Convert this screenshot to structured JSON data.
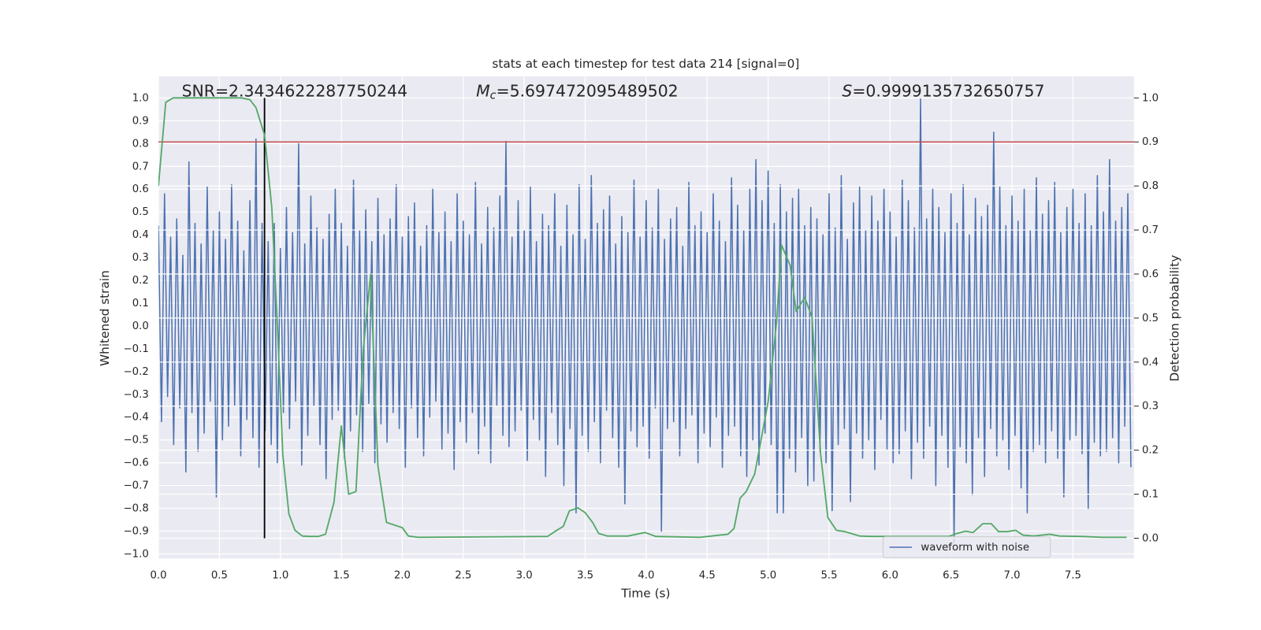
{
  "chart_data": {
    "type": "line",
    "title": "stats at each timestep for test data 214 [signal=0]",
    "x_label": "Time (s)",
    "y_label": "Whitened strain",
    "y2_label": "Detection probability",
    "grid": true,
    "legend": "lower right",
    "xlim": [
      0,
      8
    ],
    "ylim": [
      -1.02,
      1.095
    ],
    "y2lim": [
      -0.046,
      1.049
    ],
    "xticks": [
      {
        "value": 0,
        "label": "0.0"
      },
      {
        "value": 0.5,
        "label": "0.5"
      },
      {
        "value": 1,
        "label": "1.0"
      },
      {
        "value": 1.5,
        "label": "1.5"
      },
      {
        "value": 2,
        "label": "2.0"
      },
      {
        "value": 2.5,
        "label": "2.5"
      },
      {
        "value": 3,
        "label": "3.0"
      },
      {
        "value": 3.5,
        "label": "3.5"
      },
      {
        "value": 4,
        "label": "4.0"
      },
      {
        "value": 4.5,
        "label": "4.5"
      },
      {
        "value": 5,
        "label": "5.0"
      },
      {
        "value": 5.5,
        "label": "5.5"
      },
      {
        "value": 6,
        "label": "6.0"
      },
      {
        "value": 6.5,
        "label": "6.5"
      },
      {
        "value": 7,
        "label": "7.0"
      },
      {
        "value": 7.5,
        "label": "7.5"
      }
    ],
    "yticks": [
      {
        "value": -1,
        "label": "−1.0"
      },
      {
        "value": -0.9,
        "label": "−0.9"
      },
      {
        "value": -0.8,
        "label": "−0.8"
      },
      {
        "value": -0.7,
        "label": "−0.7"
      },
      {
        "value": -0.6,
        "label": "−0.6"
      },
      {
        "value": -0.5,
        "label": "−0.5"
      },
      {
        "value": -0.4,
        "label": "−0.4"
      },
      {
        "value": -0.3,
        "label": "−0.3"
      },
      {
        "value": -0.2,
        "label": "−0.2"
      },
      {
        "value": -0.1,
        "label": "−0.1"
      },
      {
        "value": 0,
        "label": "0.0"
      },
      {
        "value": 0.1,
        "label": "0.1"
      },
      {
        "value": 0.2,
        "label": "0.2"
      },
      {
        "value": 0.3,
        "label": "0.3"
      },
      {
        "value": 0.4,
        "label": "0.4"
      },
      {
        "value": 0.5,
        "label": "0.5"
      },
      {
        "value": 0.6,
        "label": "0.6"
      },
      {
        "value": 0.7,
        "label": "0.7"
      },
      {
        "value": 0.8,
        "label": "0.8"
      },
      {
        "value": 0.9,
        "label": "0.9"
      },
      {
        "value": 1,
        "label": "1.0"
      }
    ],
    "y2ticks": [
      {
        "value": 0,
        "label": "0.0"
      },
      {
        "value": 0.1,
        "label": "0.1"
      },
      {
        "value": 0.2,
        "label": "0.2"
      },
      {
        "value": 0.3,
        "label": "0.3"
      },
      {
        "value": 0.4,
        "label": "0.4"
      },
      {
        "value": 0.5,
        "label": "0.5"
      },
      {
        "value": 0.6,
        "label": "0.6"
      },
      {
        "value": 0.7,
        "label": "0.7"
      },
      {
        "value": 0.8,
        "label": "0.8"
      },
      {
        "value": 0.9,
        "label": "0.9"
      },
      {
        "value": 1,
        "label": "1.0"
      }
    ],
    "annotations": [
      {
        "text": "SNR=2.3434622287750244"
      },
      {
        "symbol": "M",
        "subscript": "c",
        "text": "=5.697472095489502"
      },
      {
        "symbol": "S",
        "text": "=0.9999135732650757"
      }
    ],
    "hlines": [
      {
        "y": 0.9,
        "axis": "y2",
        "color": "#c44e52"
      }
    ],
    "vlines": [
      {
        "x": 0.87,
        "ymin": 0,
        "ymax": 1,
        "axis": "y2",
        "color": "#000000"
      }
    ],
    "series": [
      {
        "name": "waveform with noise",
        "color": "#4c72b0",
        "x": [
          0,
          0.025,
          0.05,
          0.075,
          0.1,
          0.125,
          0.15,
          0.175,
          0.2,
          0.225,
          0.25,
          0.275,
          0.3,
          0.325,
          0.35,
          0.375,
          0.4,
          0.425,
          0.45,
          0.475,
          0.5,
          0.525,
          0.55,
          0.575,
          0.6,
          0.625,
          0.65,
          0.675,
          0.7,
          0.725,
          0.75,
          0.775,
          0.8,
          0.825,
          0.85,
          0.875,
          0.9,
          0.925,
          0.95,
          0.975,
          1,
          1.025,
          1.05,
          1.075,
          1.1,
          1.125,
          1.15,
          1.175,
          1.2,
          1.225,
          1.25,
          1.275,
          1.3,
          1.325,
          1.35,
          1.375,
          1.4,
          1.425,
          1.45,
          1.475,
          1.5,
          1.525,
          1.55,
          1.575,
          1.6,
          1.625,
          1.65,
          1.675,
          1.7,
          1.725,
          1.75,
          1.775,
          1.8,
          1.825,
          1.85,
          1.875,
          1.9,
          1.925,
          1.95,
          1.975,
          2,
          2.025,
          2.05,
          2.075,
          2.1,
          2.125,
          2.15,
          2.175,
          2.2,
          2.225,
          2.25,
          2.275,
          2.3,
          2.325,
          2.35,
          2.375,
          2.4,
          2.425,
          2.45,
          2.475,
          2.5,
          2.525,
          2.55,
          2.575,
          2.6,
          2.625,
          2.65,
          2.675,
          2.7,
          2.725,
          2.75,
          2.775,
          2.8,
          2.825,
          2.85,
          2.875,
          2.9,
          2.925,
          2.95,
          2.975,
          3,
          3.025,
          3.05,
          3.075,
          3.1,
          3.125,
          3.15,
          3.175,
          3.2,
          3.225,
          3.25,
          3.275,
          3.3,
          3.325,
          3.35,
          3.375,
          3.4,
          3.425,
          3.45,
          3.475,
          3.5,
          3.525,
          3.55,
          3.575,
          3.6,
          3.625,
          3.65,
          3.675,
          3.7,
          3.725,
          3.75,
          3.775,
          3.8,
          3.825,
          3.85,
          3.875,
          3.9,
          3.925,
          3.95,
          3.975,
          4,
          4.025,
          4.05,
          4.075,
          4.1,
          4.125,
          4.15,
          4.175,
          4.2,
          4.225,
          4.25,
          4.275,
          4.3,
          4.325,
          4.35,
          4.375,
          4.4,
          4.425,
          4.45,
          4.475,
          4.5,
          4.525,
          4.55,
          4.575,
          4.6,
          4.625,
          4.65,
          4.675,
          4.7,
          4.725,
          4.75,
          4.775,
          4.8,
          4.825,
          4.85,
          4.875,
          4.9,
          4.925,
          4.95,
          4.975,
          5,
          5.025,
          5.05,
          5.075,
          5.1,
          5.125,
          5.15,
          5.175,
          5.2,
          5.225,
          5.25,
          5.275,
          5.3,
          5.325,
          5.35,
          5.375,
          5.4,
          5.425,
          5.45,
          5.475,
          5.5,
          5.525,
          5.55,
          5.575,
          5.6,
          5.625,
          5.65,
          5.675,
          5.7,
          5.725,
          5.75,
          5.775,
          5.8,
          5.825,
          5.85,
          5.875,
          5.9,
          5.925,
          5.95,
          5.975,
          6,
          6.025,
          6.05,
          6.075,
          6.1,
          6.125,
          6.15,
          6.175,
          6.2,
          6.225,
          6.25,
          6.275,
          6.3,
          6.325,
          6.35,
          6.375,
          6.4,
          6.425,
          6.45,
          6.475,
          6.5,
          6.525,
          6.55,
          6.575,
          6.6,
          6.625,
          6.65,
          6.675,
          6.7,
          6.725,
          6.75,
          6.775,
          6.8,
          6.825,
          6.85,
          6.875,
          6.9,
          6.925,
          6.95,
          6.975,
          7,
          7.025,
          7.05,
          7.075,
          7.1,
          7.125,
          7.15,
          7.175,
          7.2,
          7.225,
          7.25,
          7.275,
          7.3,
          7.325,
          7.35,
          7.375,
          7.4,
          7.425,
          7.45,
          7.475,
          7.5,
          7.525,
          7.55,
          7.575,
          7.6,
          7.625,
          7.65,
          7.675,
          7.7,
          7.725,
          7.75,
          7.775,
          7.8,
          7.825,
          7.85,
          7.875,
          7.9,
          7.925,
          7.95,
          7.975
        ],
        "values": [
          0.44,
          -0.42,
          0.58,
          -0.31,
          0.39,
          -0.52,
          0.47,
          -0.36,
          0.31,
          -0.64,
          0.72,
          -0.38,
          0.45,
          -0.55,
          0.36,
          -0.47,
          0.61,
          -0.33,
          0.42,
          -0.75,
          0.5,
          -0.5,
          0.38,
          -0.44,
          0.62,
          -0.35,
          0.46,
          -0.57,
          0.33,
          -0.41,
          0.55,
          -0.49,
          0.82,
          -0.62,
          0.45,
          -0.46,
          0.37,
          -0.52,
          0.45,
          -0.6,
          0.34,
          -0.38,
          0.52,
          -0.45,
          0.41,
          -0.33,
          0.8,
          -0.61,
          0.36,
          -0.48,
          0.57,
          -0.35,
          0.43,
          -0.52,
          0.38,
          -0.67,
          0.49,
          -0.41,
          0.6,
          -0.37,
          0.45,
          -0.58,
          0.35,
          -0.46,
          0.64,
          -0.39,
          0.42,
          -0.55,
          0.51,
          -0.34,
          0.37,
          -0.6,
          0.56,
          -0.43,
          0.4,
          -0.51,
          0.47,
          -0.38,
          0.62,
          -0.45,
          0.39,
          -0.62,
          0.48,
          -0.36,
          0.54,
          -0.49,
          0.35,
          -0.57,
          0.44,
          -0.4,
          0.6,
          -0.33,
          0.41,
          -0.54,
          0.5,
          -0.47,
          0.37,
          -0.63,
          0.58,
          -0.42,
          0.46,
          -0.51,
          0.4,
          -0.38,
          0.63,
          -0.56,
          0.36,
          -0.44,
          0.52,
          -0.6,
          0.43,
          -0.35,
          0.57,
          -0.48,
          0.81,
          -0.53,
          0.39,
          -0.46,
          0.55,
          -0.37,
          0.42,
          -0.59,
          0.61,
          -0.41,
          0.37,
          -0.5,
          0.49,
          -0.66,
          0.44,
          -0.38,
          0.58,
          -0.52,
          0.35,
          -0.7,
          0.53,
          -0.45,
          0.4,
          -0.82,
          0.62,
          -0.48,
          0.38,
          -0.55,
          0.66,
          -0.42,
          0.45,
          -0.6,
          0.51,
          -0.37,
          0.57,
          -0.49,
          0.36,
          -0.62,
          0.48,
          -0.78,
          0.41,
          -0.46,
          0.64,
          -0.53,
          0.39,
          -0.44,
          0.55,
          -0.58,
          0.43,
          -0.36,
          0.6,
          -0.9,
          0.38,
          -0.45,
          0.47,
          -0.42,
          0.52,
          -0.57,
          0.35,
          -0.45,
          0.63,
          -0.39,
          0.44,
          -0.6,
          0.5,
          -0.47,
          0.41,
          -0.53,
          0.58,
          -0.4,
          0.46,
          -0.62,
          0.37,
          -0.48,
          0.65,
          -0.44,
          0.53,
          -0.57,
          0.42,
          -0.66,
          0.6,
          -0.5,
          0.73,
          -0.61,
          0.55,
          -0.47,
          0.68,
          -0.52,
          0.45,
          -0.82,
          0.62,
          -0.82,
          0.5,
          -0.58,
          0.56,
          -0.64,
          0.6,
          -0.49,
          0.44,
          -0.7,
          0.52,
          -0.68,
          0.47,
          -0.55,
          0.4,
          -0.6,
          0.58,
          -0.81,
          0.43,
          -0.52,
          0.66,
          -0.45,
          0.38,
          -0.77,
          0.54,
          -0.47,
          0.61,
          -0.58,
          0.42,
          -0.5,
          0.57,
          -0.63,
          0.46,
          -0.41,
          0.6,
          -0.54,
          0.5,
          -0.6,
          0.39,
          -0.56,
          0.64,
          -0.46,
          0.55,
          -0.67,
          0.43,
          -0.51,
          1.0,
          -0.58,
          0.47,
          -0.44,
          0.6,
          -0.7,
          0.52,
          -0.48,
          0.41,
          -0.62,
          0.58,
          -0.95,
          0.45,
          -0.53,
          0.62,
          -0.6,
          0.4,
          -0.74,
          0.56,
          -0.49,
          0.48,
          -0.66,
          0.53,
          -0.45,
          0.85,
          -0.57,
          0.61,
          -0.5,
          0.44,
          -0.63,
          0.57,
          -0.48,
          0.46,
          -0.71,
          0.6,
          -0.82,
          0.42,
          -0.55,
          0.65,
          -0.52,
          0.49,
          -0.6,
          0.55,
          -0.46,
          0.63,
          -0.58,
          0.41,
          -0.75,
          0.52,
          -0.5,
          0.6,
          -0.48,
          0.45,
          -0.56,
          0.58,
          -0.8,
          0.44,
          -0.51,
          0.66,
          -0.57,
          0.5,
          -0.55,
          0.73,
          -0.49,
          0.46,
          -0.6,
          0.52,
          -0.44,
          0.58,
          -0.62
        ]
      },
      {
        "color": "#55a868",
        "axis": "y2",
        "x": [
          0,
          0.06,
          0.12,
          0.68,
          0.75,
          0.8,
          0.87,
          0.93,
          0.98,
          1.02,
          1.07,
          1.12,
          1.18,
          1.24,
          1.31,
          1.37,
          1.44,
          1.5,
          1.56,
          1.62,
          1.68,
          1.74,
          1.8,
          1.87,
          2.0,
          2.05,
          2.13,
          3.19,
          3.25,
          3.32,
          3.37,
          3.44,
          3.5,
          3.56,
          3.61,
          3.68,
          3.85,
          3.99,
          4.08,
          4.44,
          4.6,
          4.67,
          4.72,
          4.77,
          4.82,
          4.89,
          5.0,
          5.07,
          5.11,
          5.18,
          5.23,
          5.3,
          5.36,
          5.43,
          5.49,
          5.56,
          5.63,
          5.75,
          5.86,
          6.48,
          6.55,
          6.62,
          6.68,
          6.76,
          6.83,
          6.89,
          6.96,
          7.03,
          7.09,
          7.18,
          7.31,
          7.39,
          7.57,
          7.74,
          7.94
        ],
        "values": [
          0.8,
          0.99,
          1.0,
          1.0,
          0.996,
          0.978,
          0.916,
          0.75,
          0.456,
          0.19,
          0.055,
          0.018,
          0.005,
          0.004,
          0.004,
          0.009,
          0.082,
          0.255,
          0.1,
          0.106,
          0.429,
          0.599,
          0.164,
          0.036,
          0.024,
          0.005,
          0.002,
          0.004,
          0.015,
          0.027,
          0.062,
          0.069,
          0.058,
          0.036,
          0.011,
          0.005,
          0.005,
          0.013,
          0.004,
          0.002,
          0.007,
          0.009,
          0.022,
          0.091,
          0.106,
          0.146,
          0.31,
          0.493,
          0.666,
          0.62,
          0.515,
          0.547,
          0.502,
          0.192,
          0.047,
          0.018,
          0.015,
          0.005,
          0.004,
          0.004,
          0.011,
          0.016,
          0.013,
          0.033,
          0.033,
          0.015,
          0.015,
          0.018,
          0.007,
          0.005,
          0.009,
          0.005,
          0.004,
          0.002,
          0.002
        ]
      }
    ]
  }
}
